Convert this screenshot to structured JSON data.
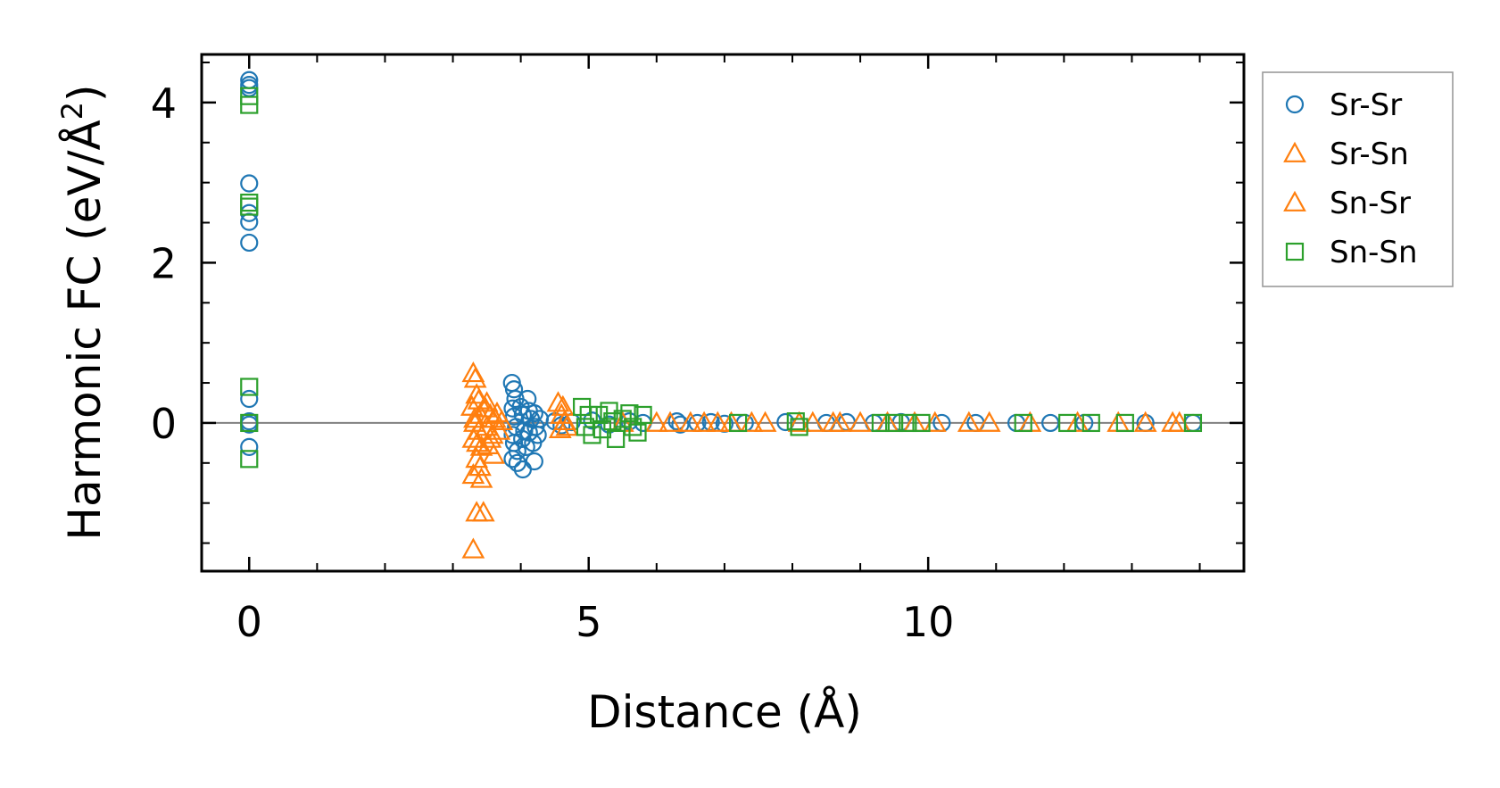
{
  "chart_data": {
    "type": "scatter",
    "title": "",
    "xlabel": "Distance (Å)",
    "ylabel": "Harmonic FC (eV/Å²)",
    "ylabel_main": "Harmonic FC (eV/Å",
    "ylabel_sup": "2",
    "ylabel_end": ")",
    "xlim": [
      -0.7,
      14.65
    ],
    "ylim": [
      -1.85,
      4.6
    ],
    "xticks": [
      0,
      5,
      10
    ],
    "xtick_labels": [
      "0",
      "5",
      "10"
    ],
    "xminor": [
      1,
      2,
      3,
      4,
      6,
      7,
      8,
      9,
      11,
      12,
      13,
      14
    ],
    "yticks": [
      0,
      2,
      4
    ],
    "ytick_labels": [
      "0",
      "2",
      "4"
    ],
    "yminor": [
      -1.5,
      -1,
      -0.5,
      0.5,
      1,
      1.5,
      2.5,
      3,
      3.5,
      4.5
    ],
    "reference_line_y": 0,
    "legend_position": "outside-right-top",
    "series": [
      {
        "name": "Sr-Sr",
        "marker": "circle",
        "color": "#1f77b4",
        "points": [
          [
            0,
            4.28
          ],
          [
            0,
            4.22
          ],
          [
            0,
            4.18
          ],
          [
            0,
            2.99
          ],
          [
            0,
            2.62
          ],
          [
            0,
            2.51
          ],
          [
            0,
            2.25
          ],
          [
            0,
            0.3
          ],
          [
            0,
            0.02
          ],
          [
            0,
            -0.02
          ],
          [
            0,
            -0.3
          ],
          [
            3.87,
            0.5
          ],
          [
            3.9,
            0.42
          ],
          [
            3.92,
            0.3
          ],
          [
            3.88,
            0.18
          ],
          [
            3.9,
            0.08
          ],
          [
            3.93,
            -0.05
          ],
          [
            3.88,
            -0.15
          ],
          [
            3.9,
            -0.25
          ],
          [
            3.95,
            -0.35
          ],
          [
            3.88,
            -0.45
          ],
          [
            3.95,
            -0.5
          ],
          [
            4.0,
            0.2
          ],
          [
            4.03,
            0.1
          ],
          [
            4.05,
            -0.1
          ],
          [
            4.02,
            -0.2
          ],
          [
            4.08,
            -0.3
          ],
          [
            4.03,
            -0.58
          ],
          [
            4.1,
            0.3
          ],
          [
            4.12,
            0.15
          ],
          [
            4.15,
            0.05
          ],
          [
            4.12,
            -0.12
          ],
          [
            4.18,
            -0.25
          ],
          [
            4.2,
            0.12
          ],
          [
            4.22,
            -0.05
          ],
          [
            4.25,
            -0.15
          ],
          [
            4.2,
            -0.48
          ],
          [
            4.28,
            0.05
          ],
          [
            4.5,
            0.02
          ],
          [
            4.6,
            -0.03
          ],
          [
            4.75,
            0.01
          ],
          [
            5.05,
            0.03
          ],
          [
            5.3,
            -0.02
          ],
          [
            5.6,
            0.02
          ],
          [
            5.8,
            0.0
          ],
          [
            6.3,
            0.02
          ],
          [
            6.35,
            -0.02
          ],
          [
            6.6,
            0.0
          ],
          [
            6.8,
            0.01
          ],
          [
            7.0,
            -0.01
          ],
          [
            7.3,
            0.0
          ],
          [
            7.9,
            0.01
          ],
          [
            8.5,
            0.0
          ],
          [
            8.8,
            0.01
          ],
          [
            9.2,
            0.0
          ],
          [
            9.6,
            0.01
          ],
          [
            10.2,
            0.0
          ],
          [
            10.7,
            0.0
          ],
          [
            11.3,
            0.0
          ],
          [
            11.8,
            0.0
          ],
          [
            12.3,
            0.0
          ],
          [
            13.2,
            0.0
          ],
          [
            13.9,
            0.0
          ]
        ]
      },
      {
        "name": "Sr-Sn",
        "marker": "triangle",
        "color": "#ff7f0e",
        "points": [
          [
            3.3,
            0.62
          ],
          [
            3.35,
            0.35
          ],
          [
            3.28,
            0.2
          ],
          [
            3.4,
            0.1
          ],
          [
            3.32,
            0.0
          ],
          [
            3.38,
            -0.1
          ],
          [
            3.3,
            -0.2
          ],
          [
            3.42,
            -0.3
          ],
          [
            3.35,
            -0.45
          ],
          [
            3.3,
            -0.65
          ],
          [
            3.42,
            -0.7
          ],
          [
            3.35,
            -1.12
          ],
          [
            3.45,
            -1.12
          ],
          [
            3.3,
            -1.58
          ],
          [
            3.5,
            0.25
          ],
          [
            3.55,
            0.1
          ],
          [
            3.5,
            -0.05
          ],
          [
            3.58,
            -0.15
          ],
          [
            3.52,
            -0.28
          ],
          [
            3.6,
            -0.4
          ],
          [
            3.65,
            0.12
          ],
          [
            3.68,
            -0.1
          ],
          [
            3.72,
            0.02
          ],
          [
            4.55,
            0.25
          ],
          [
            4.6,
            0.1
          ],
          [
            4.58,
            -0.08
          ],
          [
            4.65,
            0.02
          ],
          [
            6.2,
            0.0
          ],
          [
            6.5,
            0.0
          ],
          [
            6.7,
            0.0
          ],
          [
            7.1,
            0.0
          ],
          [
            7.4,
            0.0
          ],
          [
            8.3,
            0.0
          ],
          [
            8.7,
            0.0
          ],
          [
            9.8,
            0.0
          ],
          [
            10.6,
            0.0
          ],
          [
            13.6,
            0.0
          ]
        ]
      },
      {
        "name": "Sn-Sr",
        "marker": "triangle",
        "color": "#ff7f0e",
        "points": [
          [
            3.33,
            0.55
          ],
          [
            3.38,
            0.28
          ],
          [
            3.32,
            0.05
          ],
          [
            3.36,
            -0.25
          ],
          [
            3.4,
            -0.55
          ],
          [
            3.48,
            0.18
          ],
          [
            3.55,
            -0.2
          ],
          [
            3.62,
            0.05
          ],
          [
            4.62,
            0.2
          ],
          [
            4.68,
            -0.05
          ],
          [
            5.5,
            0.0
          ],
          [
            6.0,
            0.0
          ],
          [
            6.9,
            0.0
          ],
          [
            7.6,
            0.0
          ],
          [
            8.1,
            0.0
          ],
          [
            8.6,
            0.0
          ],
          [
            9.0,
            0.0
          ],
          [
            9.4,
            0.0
          ],
          [
            10.1,
            0.0
          ],
          [
            10.9,
            0.0
          ],
          [
            11.5,
            0.0
          ],
          [
            12.2,
            0.0
          ],
          [
            12.8,
            0.0
          ],
          [
            13.2,
            0.0
          ],
          [
            13.7,
            0.0
          ]
        ]
      },
      {
        "name": "Sn-Sn",
        "marker": "square",
        "color": "#2ca02c",
        "points": [
          [
            0,
            4.08
          ],
          [
            0,
            3.97
          ],
          [
            0,
            2.75
          ],
          [
            0,
            2.7
          ],
          [
            0,
            0.45
          ],
          [
            0,
            0.0
          ],
          [
            0,
            -0.45
          ],
          [
            4.9,
            0.2
          ],
          [
            5.0,
            0.1
          ],
          [
            4.95,
            -0.05
          ],
          [
            5.05,
            -0.15
          ],
          [
            5.15,
            0.1
          ],
          [
            5.2,
            -0.08
          ],
          [
            5.3,
            0.15
          ],
          [
            5.35,
            0.02
          ],
          [
            5.4,
            -0.2
          ],
          [
            5.5,
            0.05
          ],
          [
            5.6,
            0.12
          ],
          [
            5.65,
            -0.05
          ],
          [
            5.72,
            -0.12
          ],
          [
            5.8,
            0.1
          ],
          [
            7.2,
            0.0
          ],
          [
            8.05,
            0.02
          ],
          [
            8.1,
            -0.05
          ],
          [
            9.3,
            0.0
          ],
          [
            9.5,
            0.0
          ],
          [
            9.7,
            0.0
          ],
          [
            9.9,
            0.0
          ],
          [
            11.4,
            0.0
          ],
          [
            12.05,
            0.0
          ],
          [
            12.4,
            0.0
          ],
          [
            12.9,
            0.0
          ],
          [
            13.9,
            0.0
          ]
        ]
      }
    ]
  }
}
